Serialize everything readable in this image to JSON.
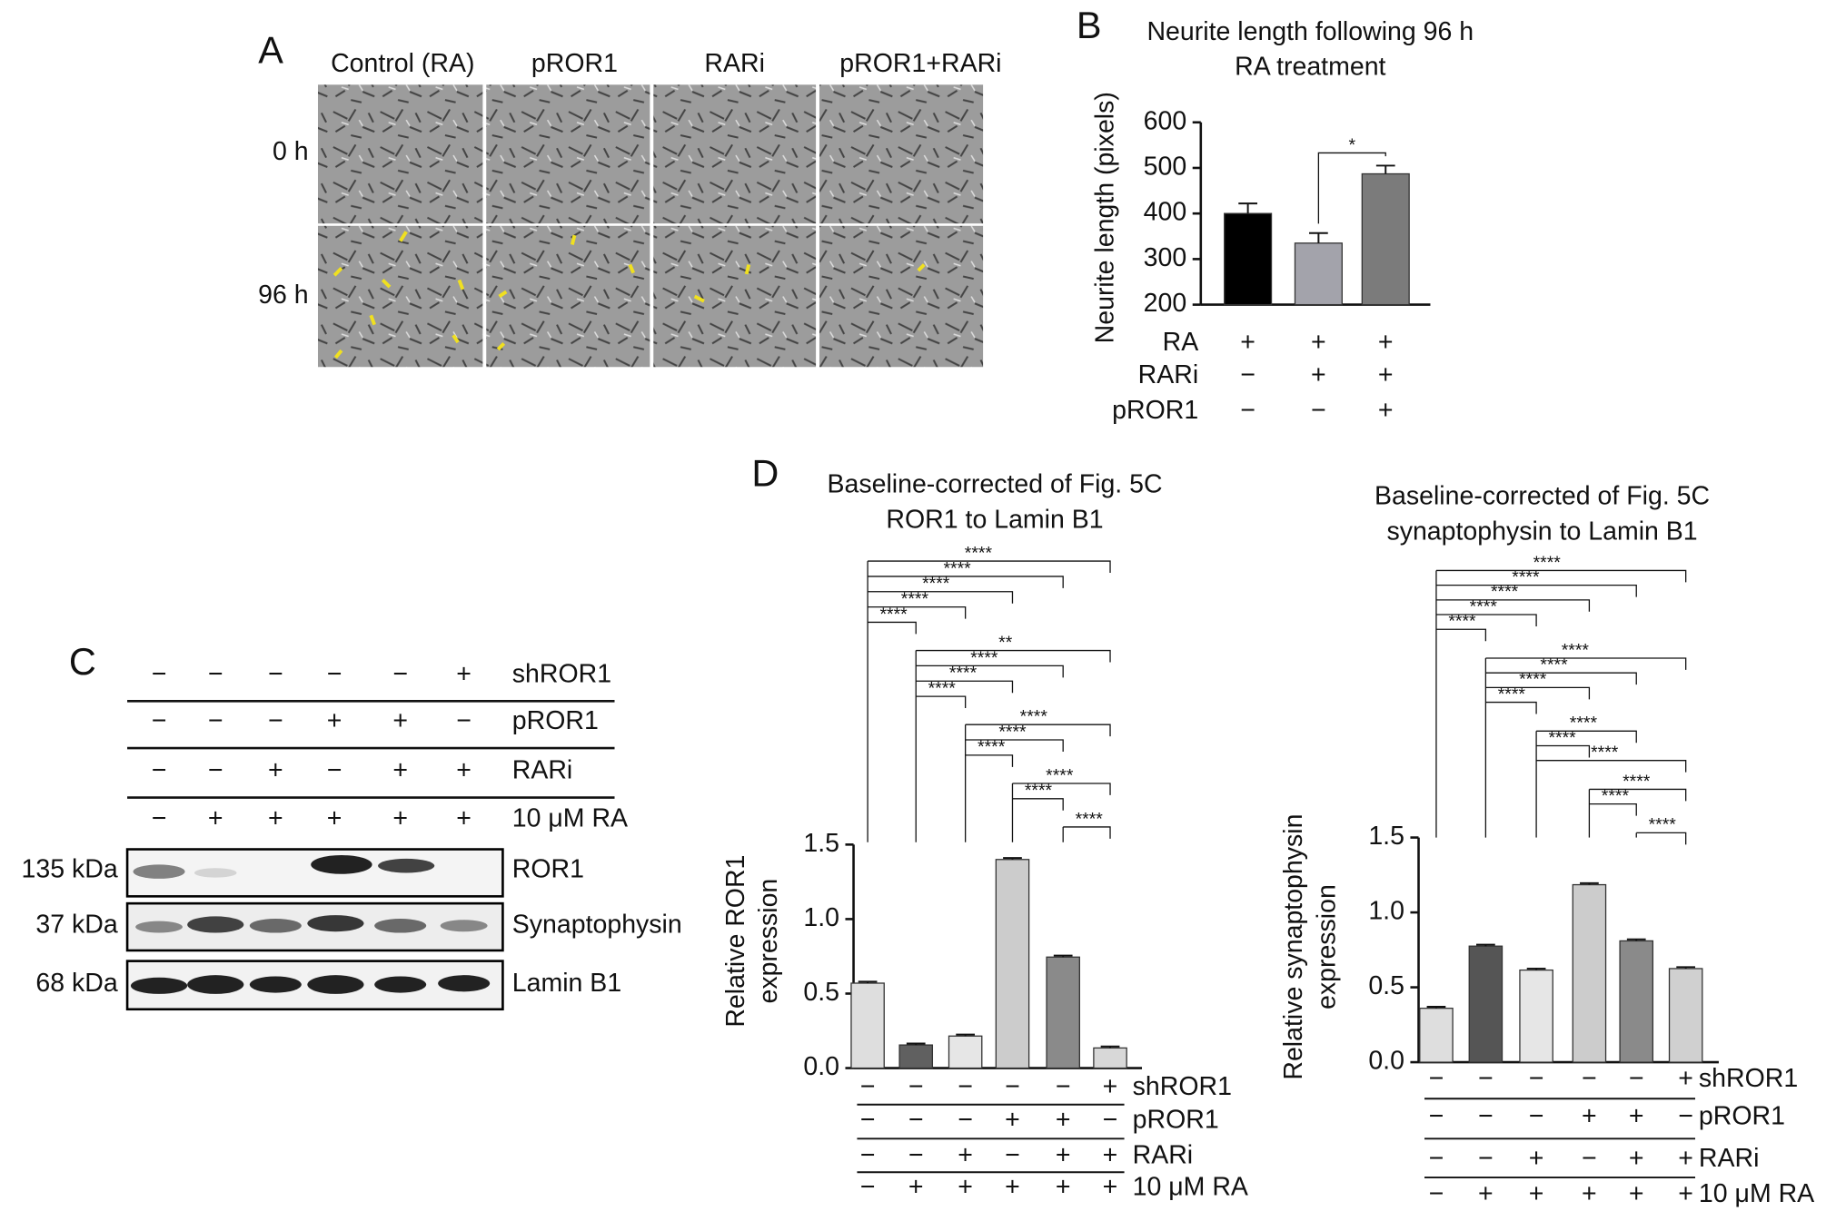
{
  "panel_labels": [
    "A",
    "B",
    "C",
    "D"
  ],
  "panel_a": {
    "columns": [
      "Control (RA)",
      "pROR1",
      "RARi",
      "pROR1+RARi"
    ],
    "rows": [
      "0 h",
      "96 h"
    ]
  },
  "panel_c": {
    "conditions": [
      {
        "label": "shROR1",
        "signs": [
          "−",
          "−",
          "−",
          "−",
          "−",
          "+"
        ]
      },
      {
        "label": "pROR1",
        "signs": [
          "−",
          "−",
          "−",
          "+",
          "+",
          "−"
        ]
      },
      {
        "label": "RARi",
        "signs": [
          "−",
          "−",
          "+",
          "−",
          "+",
          "+"
        ]
      },
      {
        "label": "10 μM RA",
        "signs": [
          "−",
          "+",
          "+",
          "+",
          "+",
          "+"
        ]
      }
    ],
    "bands": [
      {
        "size": "135 kDa",
        "name": "ROR1"
      },
      {
        "size": "37 kDa",
        "name": "Synaptophysin"
      },
      {
        "size": "68 kDa",
        "name": "Lamin B1"
      }
    ]
  },
  "chart_data": [
    {
      "type": "bar",
      "title": [
        "Neurite length following 96 h",
        "RA treatment"
      ],
      "y_label": [
        "Neurite length (pixels)"
      ],
      "values": [
        400,
        335,
        487
      ],
      "errors": [
        22,
        22,
        18
      ],
      "colors": [
        "#000000",
        "#a3a3ab",
        "#7b7b7b"
      ],
      "ylim": [
        200,
        600
      ],
      "yticks": [
        200,
        300,
        400,
        500,
        600
      ],
      "conditions": [
        {
          "label": "RA",
          "signs": [
            "+",
            "+",
            "+"
          ]
        },
        {
          "label": "RARi",
          "signs": [
            "−",
            "+",
            "+"
          ]
        },
        {
          "label": "pROR1",
          "signs": [
            "−",
            "−",
            "+"
          ]
        }
      ],
      "comparisons": [
        {
          "between": [
            1,
            2
          ],
          "label": "*"
        }
      ]
    },
    {
      "type": "bar",
      "title": [
        "Baseline-corrected of  Fig. 5C",
        "ROR1 to Lamin B1"
      ],
      "y_label": [
        "Relative ROR1",
        "expression"
      ],
      "values": [
        0.57,
        0.155,
        0.215,
        1.4,
        0.745,
        0.135
      ],
      "errors": [
        0.01,
        0.01,
        0.01,
        0.01,
        0.01,
        0.01
      ],
      "colors": [
        "#dedede",
        "#606060",
        "#e6e6e6",
        "#cccccc",
        "#8a8a8a",
        "#d8d8d8"
      ],
      "ylim": [
        0,
        1.5
      ],
      "yticks": [
        {
          "value": 0,
          "label": "0.0"
        },
        0.5,
        {
          "value": 1,
          "label": "1.0"
        },
        1.5
      ],
      "conditions": [
        {
          "label": "shROR1",
          "signs": [
            "−",
            "−",
            "−",
            "−",
            "−",
            "+"
          ]
        },
        {
          "label": "pROR1",
          "signs": [
            "−",
            "−",
            "−",
            "+",
            "+",
            "−"
          ]
        },
        {
          "label": "RARi",
          "signs": [
            "−",
            "−",
            "+",
            "−",
            "+",
            "+"
          ]
        },
        {
          "label": "10 μM RA",
          "signs": [
            "−",
            "+",
            "+",
            "+",
            "+",
            "+"
          ]
        }
      ],
      "comparisons": [
        {
          "between": [
            0,
            5
          ],
          "label": "****"
        },
        {
          "between": [
            0,
            4
          ],
          "label": "****"
        },
        {
          "between": [
            0,
            3
          ],
          "label": "****"
        },
        {
          "between": [
            0,
            2
          ],
          "label": "****"
        },
        {
          "between": [
            0,
            1
          ],
          "label": "****"
        },
        {
          "between": [
            1,
            5
          ],
          "label": "**"
        },
        {
          "between": [
            1,
            4
          ],
          "label": "****"
        },
        {
          "between": [
            1,
            3
          ],
          "label": "****"
        },
        {
          "between": [
            1,
            2
          ],
          "label": "****"
        },
        {
          "between": [
            2,
            5
          ],
          "label": "****"
        },
        {
          "between": [
            2,
            4
          ],
          "label": "****"
        },
        {
          "between": [
            2,
            3
          ],
          "label": "****"
        },
        {
          "between": [
            3,
            5
          ],
          "label": "****"
        },
        {
          "between": [
            3,
            4
          ],
          "label": "****"
        },
        {
          "between": [
            4,
            5
          ],
          "label": "****"
        }
      ]
    },
    {
      "type": "bar",
      "title": [
        "Baseline-corrected of Fig. 5C",
        "synaptophysin to Lamin B1"
      ],
      "y_label": [
        "Relative synaptophysin",
        "expression"
      ],
      "values": [
        0.36,
        0.775,
        0.615,
        1.185,
        0.81,
        0.625
      ],
      "errors": [
        0.01,
        0.01,
        0.01,
        0.01,
        0.01,
        0.01
      ],
      "colors": [
        "#dedede",
        "#555555",
        "#e6e6e6",
        "#cccccc",
        "#8a8a8a",
        "#d0d0d0"
      ],
      "ylim": [
        0,
        1.5
      ],
      "yticks": [
        {
          "value": 0,
          "label": "0.0"
        },
        0.5,
        {
          "value": 1,
          "label": "1.0"
        },
        1.5
      ],
      "conditions": [
        {
          "label": "shROR1",
          "signs": [
            "−",
            "−",
            "−",
            "−",
            "−",
            "+"
          ]
        },
        {
          "label": "pROR1",
          "signs": [
            "−",
            "−",
            "−",
            "+",
            "+",
            "−"
          ]
        },
        {
          "label": "RARi",
          "signs": [
            "−",
            "−",
            "+",
            "−",
            "+",
            "+"
          ]
        },
        {
          "label": "10 μM RA",
          "signs": [
            "−",
            "+",
            "+",
            "+",
            "+",
            "+"
          ]
        }
      ],
      "comparisons": [
        {
          "between": [
            0,
            5
          ],
          "label": "****"
        },
        {
          "between": [
            0,
            4
          ],
          "label": "****"
        },
        {
          "between": [
            0,
            3
          ],
          "label": "****"
        },
        {
          "between": [
            0,
            2
          ],
          "label": "****"
        },
        {
          "between": [
            0,
            1
          ],
          "label": "****"
        },
        {
          "between": [
            1,
            5
          ],
          "label": "****"
        },
        {
          "between": [
            1,
            4
          ],
          "label": "****"
        },
        {
          "between": [
            1,
            3
          ],
          "label": "****"
        },
        {
          "between": [
            1,
            2
          ],
          "label": "****"
        },
        {
          "between": [
            2,
            4
          ],
          "label": "****"
        },
        {
          "between": [
            2,
            3
          ],
          "label": "****"
        },
        {
          "between": [
            2,
            5
          ],
          "label": "****"
        },
        {
          "between": [
            3,
            5
          ],
          "label": "****"
        },
        {
          "between": [
            3,
            4
          ],
          "label": "****"
        },
        {
          "between": [
            4,
            5
          ],
          "label": "****"
        }
      ]
    }
  ]
}
